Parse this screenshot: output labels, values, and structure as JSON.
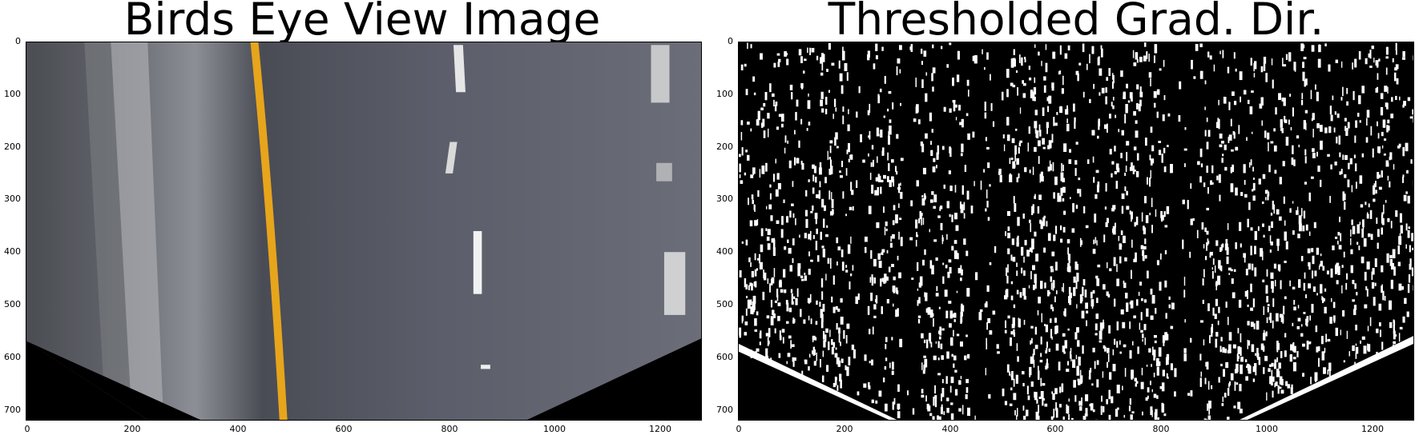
{
  "panels": [
    {
      "title": "Birds Eye View Image",
      "yticks": [
        "0",
        "100",
        "200",
        "300",
        "400",
        "500",
        "600",
        "700"
      ],
      "xticks": [
        "0",
        "200",
        "400",
        "600",
        "800",
        "1000",
        "1200"
      ],
      "image_description_icon": "road-birds-eye-image"
    },
    {
      "title": "Thresholded Grad. Dir.",
      "yticks": [
        "0",
        "100",
        "200",
        "300",
        "400",
        "500",
        "600",
        "700"
      ],
      "xticks": [
        "0",
        "200",
        "400",
        "600",
        "800",
        "1000",
        "1200"
      ],
      "image_description_icon": "binary-threshold-image"
    }
  ],
  "axes": {
    "x_range": [
      0,
      1280
    ],
    "y_range": [
      720,
      0
    ]
  }
}
